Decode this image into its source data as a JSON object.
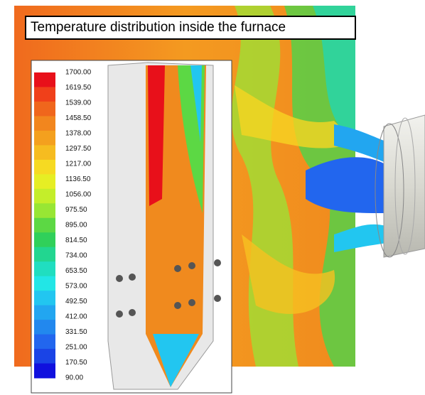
{
  "title": "Temperature distribution inside the furnace",
  "legend": {
    "levels": [
      {
        "label": "1700.00",
        "color": "#e8101a"
      },
      {
        "label": "1619.50",
        "color": "#f0401a"
      },
      {
        "label": "1539.00",
        "color": "#f0661c"
      },
      {
        "label": "1458.50",
        "color": "#f2861e"
      },
      {
        "label": "1378.00",
        "color": "#f4a01e"
      },
      {
        "label": "1297.50",
        "color": "#f6bc20"
      },
      {
        "label": "1217.00",
        "color": "#f6da22"
      },
      {
        "label": "1136.50",
        "color": "#e6ee24"
      },
      {
        "label": "1056.00",
        "color": "#c4ee2a"
      },
      {
        "label": "975.50",
        "color": "#98e634"
      },
      {
        "label": "895.00",
        "color": "#5cd844"
      },
      {
        "label": "814.50",
        "color": "#30d05a"
      },
      {
        "label": "734.00",
        "color": "#22d690"
      },
      {
        "label": "653.50",
        "color": "#20dec0"
      },
      {
        "label": "573.00",
        "color": "#22e6e6"
      },
      {
        "label": "492.50",
        "color": "#22c6f0"
      },
      {
        "label": "412.00",
        "color": "#22a6f0"
      },
      {
        "label": "331.50",
        "color": "#2288ee"
      },
      {
        "label": "251.00",
        "color": "#2266ee"
      },
      {
        "label": "170.50",
        "color": "#1a44e6"
      },
      {
        "label": "90.00",
        "color": "#1010de"
      }
    ]
  }
}
